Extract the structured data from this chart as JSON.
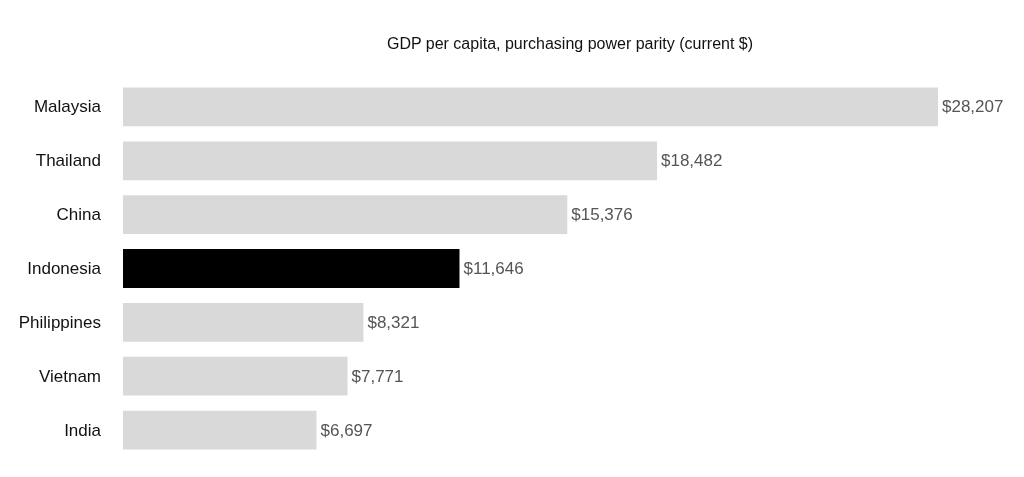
{
  "chart_data": {
    "type": "bar",
    "orientation": "horizontal",
    "title": "GDP per capita, purchasing power parity (current $)",
    "categories": [
      "Malaysia",
      "Thailand",
      "China",
      "Indonesia",
      "Philippines",
      "Vietnam",
      "India"
    ],
    "values": [
      28207,
      18482,
      15376,
      11646,
      8321,
      7771,
      6697
    ],
    "colors": [
      "#d9d9d9",
      "#d9d9d9",
      "#d9d9d9",
      "#000000",
      "#d9d9d9",
      "#d9d9d9",
      "#d9d9d9"
    ],
    "value_labels": [
      "$28,207",
      "$18,482",
      "$15,376",
      "$11,646",
      "$8,321",
      "$7,771",
      "$6,697"
    ],
    "tick_labels": "y"
  }
}
